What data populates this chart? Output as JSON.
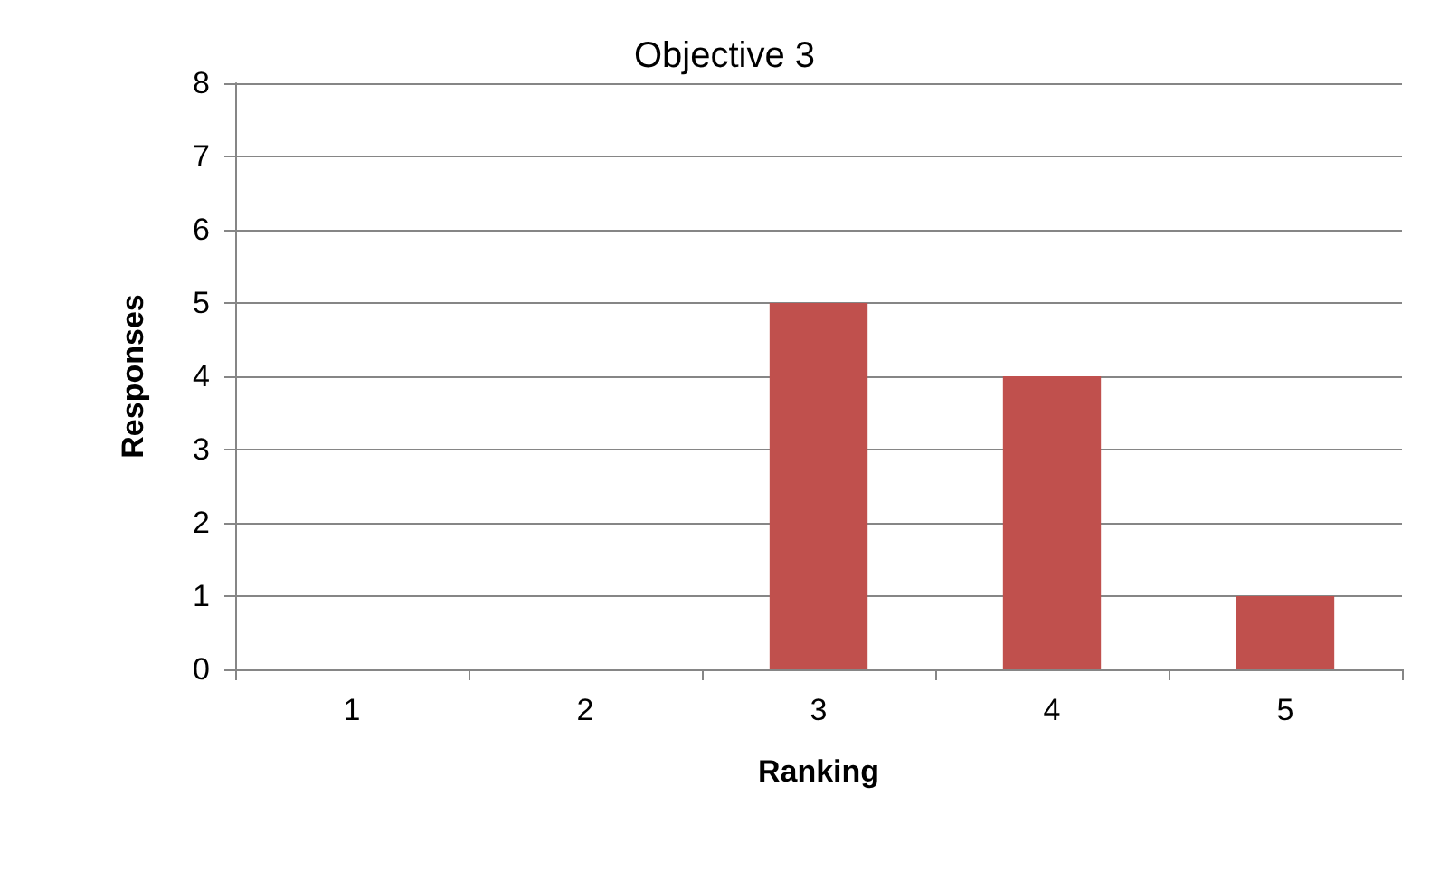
{
  "chart_data": {
    "type": "bar",
    "title": "Objective 3",
    "xlabel": "Ranking",
    "ylabel": "Responses",
    "categories": [
      "1",
      "2",
      "3",
      "4",
      "5"
    ],
    "values": [
      0,
      0,
      5,
      4,
      1
    ],
    "color": "#c0504d",
    "ylim": [
      0,
      8
    ],
    "yticks": [
      0,
      1,
      2,
      3,
      4,
      5,
      6,
      7,
      8
    ],
    "grid": "y"
  }
}
